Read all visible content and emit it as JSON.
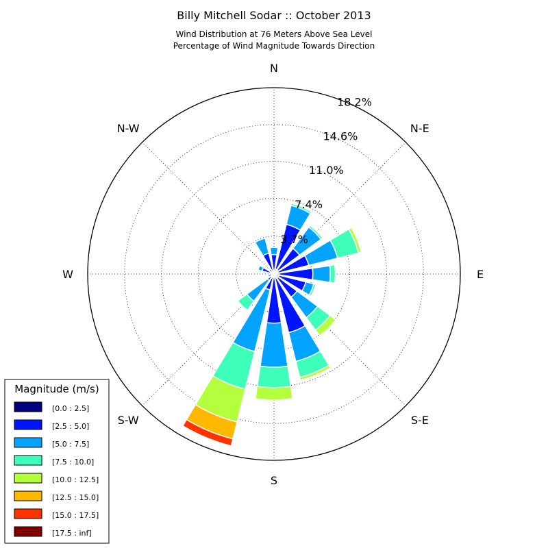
{
  "chart_data": {
    "type": "windrose",
    "title": "Billy Mitchell Sodar :: October 2013",
    "subtitle_line1": "Wind Distribution at 76 Meters Above Sea Level",
    "subtitle_line2": "Percentage of Wind Magnitude Towards Direction",
    "directions": [
      "N",
      "N-E",
      "E",
      "S-E",
      "S",
      "S-W",
      "W",
      "N-W"
    ],
    "radial_ticks": [
      {
        "value": 3.7,
        "label": "3.7%"
      },
      {
        "value": 7.4,
        "label": "7.4%"
      },
      {
        "value": 11.0,
        "label": "11.0%"
      },
      {
        "value": 14.6,
        "label": "14.6%"
      },
      {
        "value": 18.2,
        "label": "18.2%"
      }
    ],
    "rmax": 18.2,
    "sector_width_deg": 17,
    "legend": {
      "title": "Magnitude (m/s)",
      "position": "lower-left",
      "entries": [
        {
          "label": "[0.0 : 2.5]",
          "color": "#000080"
        },
        {
          "label": "[2.5 : 5.0]",
          "color": "#0014ff"
        },
        {
          "label": "[5.0 : 7.5]",
          "color": "#00a4ff"
        },
        {
          "label": "[7.5 : 10.0]",
          "color": "#3dffba"
        },
        {
          "label": "[10.0 : 12.5]",
          "color": "#b4ff3d"
        },
        {
          "label": "[12.5 : 15.0]",
          "color": "#ffb800"
        },
        {
          "label": "[15.0 : 17.5]",
          "color": "#ff3200"
        },
        {
          "label": "[17.5 : inf]",
          "color": "#800000"
        }
      ]
    },
    "sectors": [
      {
        "direction_deg": 0,
        "cumulative": [
          0.3,
          1.9,
          2.6,
          2.6
        ]
      },
      {
        "direction_deg": 22.5,
        "cumulative": [
          0.5,
          5.0,
          6.9,
          7.1
        ]
      },
      {
        "direction_deg": 45,
        "cumulative": [
          0.5,
          3.1,
          5.7,
          5.9
        ]
      },
      {
        "direction_deg": 67.5,
        "cumulative": [
          0.4,
          3.5,
          6.4,
          8.5,
          8.8
        ]
      },
      {
        "direction_deg": 90,
        "cumulative": [
          0.5,
          3.8,
          5.5,
          6.0,
          6.1
        ]
      },
      {
        "direction_deg": 112.5,
        "cumulative": [
          0.5,
          3.2,
          4.0,
          4.2
        ]
      },
      {
        "direction_deg": 135,
        "cumulative": [
          0.5,
          2.8,
          5.3,
          6.8,
          7.5
        ]
      },
      {
        "direction_deg": 157.5,
        "cumulative": [
          0.4,
          5.9,
          8.8,
          10.4,
          10.7
        ]
      },
      {
        "direction_deg": 180,
        "cumulative": [
          0.3,
          4.8,
          9.1,
          11.1,
          12.3
        ]
      },
      {
        "direction_deg": 202.5,
        "cumulative": [
          0.4,
          1.6,
          7.8,
          11.6,
          14.9,
          16.6,
          17.3
        ]
      },
      {
        "direction_deg": 225,
        "cumulative": [
          0.3,
          0.8,
          3.3,
          4.4
        ]
      },
      {
        "direction_deg": 247.5,
        "cumulative": [
          0.3,
          0.6
        ]
      },
      {
        "direction_deg": 270,
        "cumulative": [
          0.2,
          0.5
        ]
      },
      {
        "direction_deg": 292.5,
        "cumulative": [
          0.4,
          1.2,
          1.6
        ]
      },
      {
        "direction_deg": 315,
        "cumulative": [
          0.2,
          0.6
        ]
      },
      {
        "direction_deg": 337.5,
        "cumulative": [
          0.2,
          2.1,
          3.6
        ]
      }
    ]
  }
}
